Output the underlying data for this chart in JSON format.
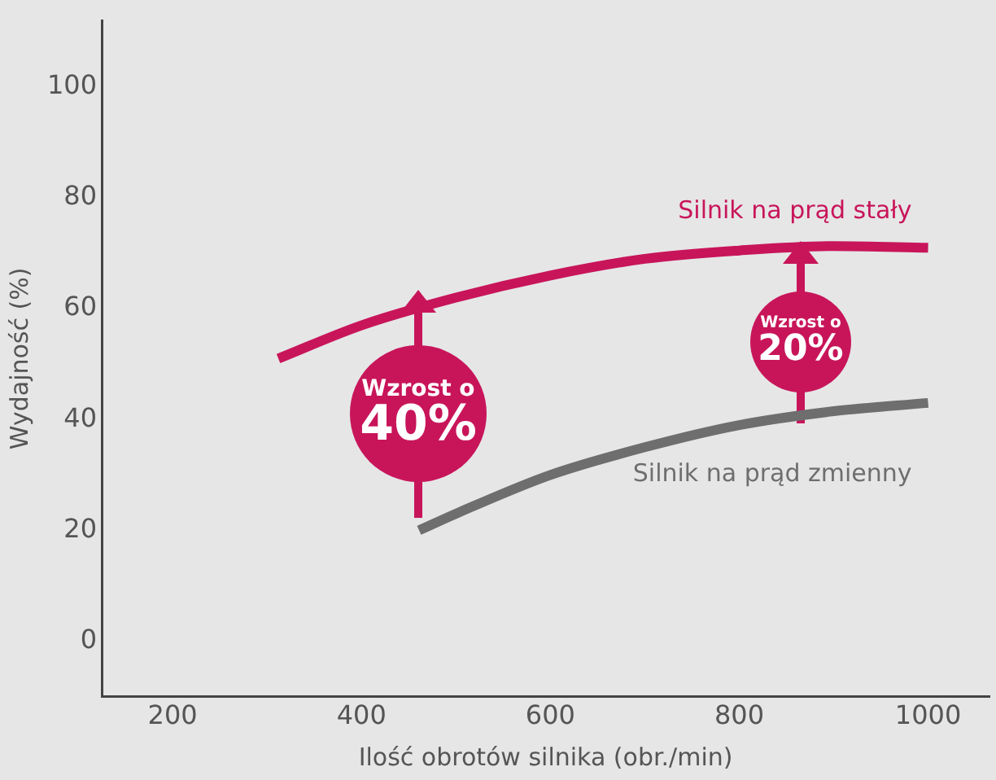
{
  "chart_data": {
    "type": "line",
    "xlabel": "Ilość obrotów silnika (obr./min)",
    "ylabel": "Wydajność (%)",
    "xlim": [
      125,
      1065
    ],
    "xticks": [
      200,
      400,
      600,
      800,
      1000
    ],
    "ylim": [
      -10,
      112
    ],
    "yticks": [
      0,
      20,
      40,
      60,
      80,
      100
    ],
    "grid": false,
    "legend": false,
    "marker": "none",
    "line_style": "solid",
    "series": [
      {
        "name": "Silnik na prąd stały",
        "color": "#c8155a",
        "x": [
          312,
          400,
          500,
          600,
          700,
          800,
          900,
          1000
        ],
        "values": [
          51,
          57,
          62,
          66,
          69,
          70.5,
          71.3,
          71
        ]
      },
      {
        "name": "Silnik na prąd zmienny",
        "color": "#6e6e6e",
        "x": [
          461,
          500,
          600,
          700,
          800,
          900,
          1000
        ],
        "values": [
          20,
          23,
          30,
          35,
          39,
          41.5,
          43
        ]
      }
    ],
    "annotations": [
      "Wzrost o 40%",
      "Wzrost o 20%"
    ]
  }
}
